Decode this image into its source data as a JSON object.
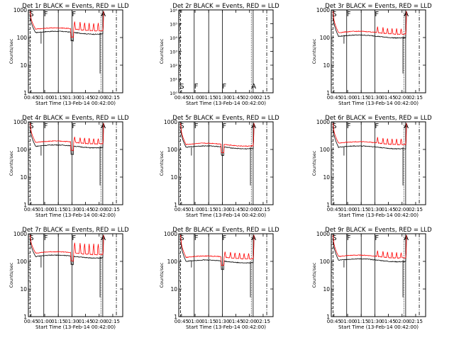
{
  "figure": {
    "ylabel": "Counts/sec",
    "xlabel": "Start Time (13-Feb-14 00:42:00)",
    "time_ticks": [
      "00:45",
      "01:00",
      "01:15",
      "01:30",
      "01:45",
      "02:00",
      "02:15"
    ],
    "log_ticks": [
      "1",
      "10",
      "100",
      "1000"
    ],
    "log_ticks_small": [
      "10⁰",
      "10¹",
      "10²",
      "10³",
      "10⁴",
      "10⁵",
      "10⁶"
    ],
    "markers": [
      {
        "label": "S",
        "time": "00:43"
      },
      {
        "label": "F",
        "time": "00:59"
      },
      {
        "label": "F",
        "time": "01:30"
      },
      {
        "label": "A",
        "time": "02:02"
      }
    ],
    "colors": {
      "events": "#000000",
      "lld": "#ff0000"
    }
  },
  "chart_data": [
    {
      "type": "line",
      "title": "Det 1r BLACK = Events, RED = LLD",
      "x_range": [
        "00:42",
        "02:26"
      ],
      "ylim": [
        1,
        1000
      ],
      "yscale": "log",
      "series": [
        {
          "name": "Events",
          "approx_level": 150,
          "color": "#000000"
        },
        {
          "name": "LLD",
          "approx_level": 200,
          "color": "#ff0000"
        }
      ]
    },
    {
      "type": "line",
      "title": "Det 2r BLACK = Events, RED = LLD",
      "x_range": [
        "00:42",
        "02:26"
      ],
      "ylim": [
        1,
        1000000
      ],
      "yscale": "log",
      "series": []
    },
    {
      "type": "line",
      "title": "Det 3r BLACK = Events, RED = LLD",
      "x_range": [
        "00:42",
        "02:26"
      ],
      "ylim": [
        1,
        1000
      ],
      "yscale": "log",
      "series": [
        {
          "name": "Events",
          "approx_level": 110,
          "color": "#000000"
        },
        {
          "name": "LLD",
          "approx_level": 150,
          "color": "#ff0000"
        }
      ]
    },
    {
      "type": "line",
      "title": "Det 4r BLACK = Events, RED = LLD",
      "x_range": [
        "00:42",
        "02:26"
      ],
      "ylim": [
        1,
        1000
      ],
      "yscale": "log",
      "series": [
        {
          "name": "Events",
          "approx_level": 130,
          "color": "#000000"
        },
        {
          "name": "LLD",
          "approx_level": 180,
          "color": "#ff0000"
        }
      ]
    },
    {
      "type": "line",
      "title": "Det 5r BLACK = Events, RED = LLD",
      "x_range": [
        "00:42",
        "02:26"
      ],
      "ylim": [
        1,
        1000
      ],
      "yscale": "log",
      "series": [
        {
          "name": "Events",
          "approx_level": 120,
          "color": "#000000"
        },
        {
          "name": "LLD",
          "approx_level": 150,
          "color": "#ff0000"
        }
      ]
    },
    {
      "type": "line",
      "title": "Det 6r BLACK = Events, RED = LLD",
      "x_range": [
        "00:42",
        "02:26"
      ],
      "ylim": [
        1,
        1000
      ],
      "yscale": "log",
      "series": [
        {
          "name": "Events",
          "approx_level": 120,
          "color": "#000000"
        },
        {
          "name": "LLD",
          "approx_level": 170,
          "color": "#ff0000"
        }
      ]
    },
    {
      "type": "line",
      "title": "Det 7r BLACK = Events, RED = LLD",
      "x_range": [
        "00:42",
        "02:26"
      ],
      "ylim": [
        1,
        1000
      ],
      "yscale": "log",
      "series": [
        {
          "name": "Events",
          "approx_level": 150,
          "color": "#000000"
        },
        {
          "name": "LLD",
          "approx_level": 200,
          "color": "#ff0000"
        }
      ]
    },
    {
      "type": "line",
      "title": "Det 8r BLACK = Events, RED = LLD",
      "x_range": [
        "00:42",
        "02:26"
      ],
      "ylim": [
        1,
        1000
      ],
      "yscale": "log",
      "series": [
        {
          "name": "Events",
          "approx_level": 100,
          "color": "#000000"
        },
        {
          "name": "LLD",
          "approx_level": 140,
          "color": "#ff0000"
        }
      ]
    },
    {
      "type": "line",
      "title": "Det 9r BLACK = Events, RED = LLD",
      "x_range": [
        "00:42",
        "02:26"
      ],
      "ylim": [
        1,
        1000
      ],
      "yscale": "log",
      "series": [
        {
          "name": "Events",
          "approx_level": 110,
          "color": "#000000"
        },
        {
          "name": "LLD",
          "approx_level": 150,
          "color": "#ff0000"
        }
      ]
    }
  ]
}
